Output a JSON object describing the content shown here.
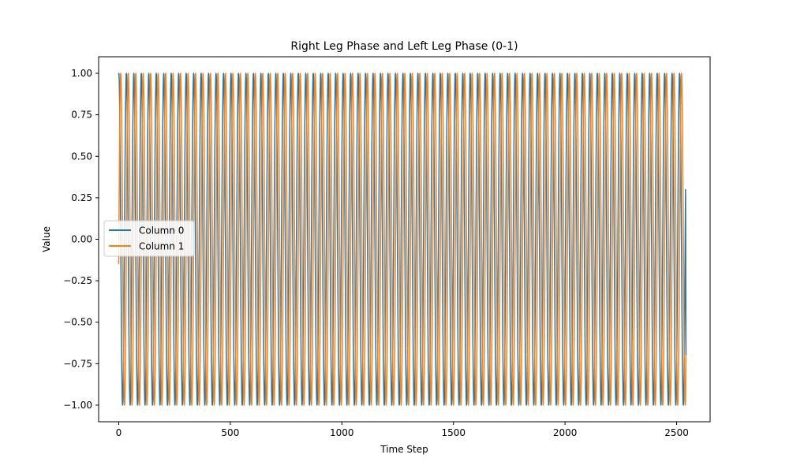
{
  "chart_data": {
    "type": "line",
    "title": "Right Leg Phase and Left Leg Phase (0-1)",
    "xlabel": "Time Step",
    "ylabel": "Value",
    "xlim": [
      -90,
      2650
    ],
    "ylim": [
      -1.1,
      1.1
    ],
    "x_ticks": [
      0,
      500,
      1000,
      1500,
      2000,
      2500
    ],
    "y_ticks": [
      -1.0,
      -0.75,
      -0.5,
      -0.25,
      0.0,
      0.25,
      0.5,
      0.75,
      1.0
    ],
    "x_tick_labels": [
      "0",
      "500",
      "1000",
      "1500",
      "2000",
      "2500"
    ],
    "y_tick_labels": [
      "−1.00",
      "−0.75",
      "−0.50",
      "−0.25",
      "0.00",
      "0.25",
      "0.50",
      "0.75",
      "1.00"
    ],
    "grid": false,
    "legend_position": "center-left",
    "series": [
      {
        "name": "Column 0",
        "color": "#1f77b4",
        "x_range": [
          0,
          2540
        ],
        "period": 33.5,
        "start_value": 0.99,
        "end_value": -0.7,
        "waveform": "sine",
        "min": -1.0,
        "max": 1.0
      },
      {
        "name": "Column 1",
        "color": "#ff7f0e",
        "x_range": [
          0,
          2540
        ],
        "period": 33.5,
        "start_value": -0.15,
        "end_value": -0.7,
        "waveform": "sine",
        "min": -1.0,
        "max": 1.0
      }
    ]
  }
}
